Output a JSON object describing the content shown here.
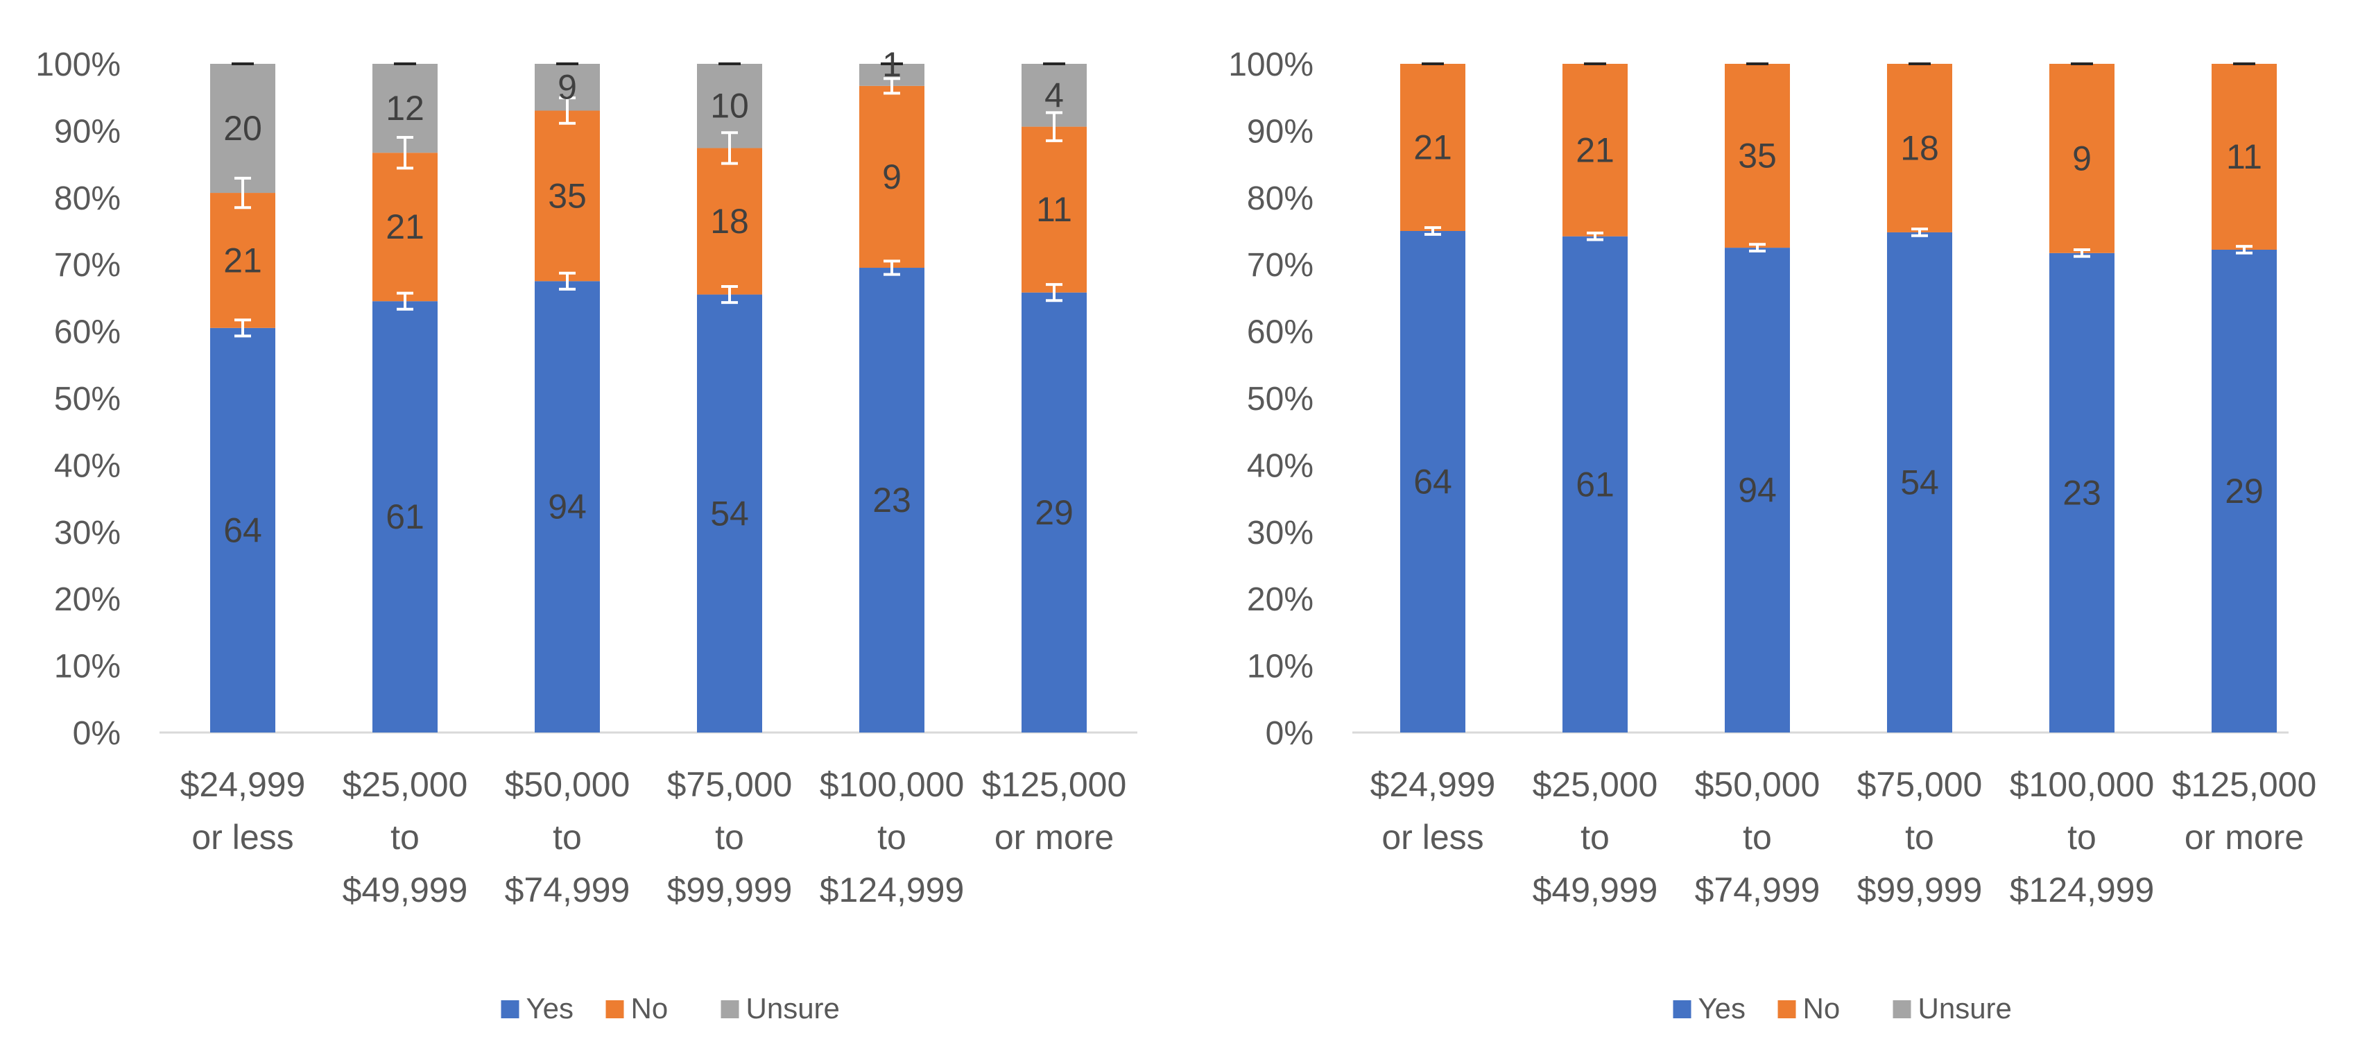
{
  "colors": {
    "yes": "#4472C4",
    "no": "#ED7D31",
    "unsure": "#A5A5A5",
    "axis_text": "#595959",
    "label_text": "#404040",
    "axis_line": "#D9D9D9"
  },
  "chart_data": [
    {
      "type": "bar",
      "stacked": "percent",
      "categories": [
        [
          "$24,999",
          "or less"
        ],
        [
          "$25,000",
          "to",
          "$49,999"
        ],
        [
          "$50,000",
          "to",
          "$74,999"
        ],
        [
          "$75,000",
          "to",
          "$99,999"
        ],
        [
          "$100,000",
          "to",
          "$124,999"
        ],
        [
          "$125,000",
          "or more"
        ]
      ],
      "ylim": [
        0,
        100
      ],
      "yticks": [
        "0%",
        "10%",
        "20%",
        "30%",
        "40%",
        "50%",
        "60%",
        "70%",
        "80%",
        "90%",
        "100%"
      ],
      "legend": {
        "position": "bottom",
        "entries": [
          "Yes",
          "No",
          "Unsure"
        ]
      },
      "series": [
        {
          "name": "Yes",
          "key": "yes",
          "percent": [
            60.5,
            64.5,
            67.5,
            65.5,
            69.5,
            65.8
          ],
          "labels": [
            64,
            61,
            94,
            54,
            23,
            29
          ],
          "error": [
            1.2,
            1.2,
            1.2,
            1.2,
            1.0,
            1.2
          ]
        },
        {
          "name": "No",
          "key": "no",
          "percent": [
            20.2,
            22.2,
            25.5,
            21.9,
            27.2,
            24.8
          ],
          "labels": [
            21,
            21,
            35,
            18,
            9,
            11
          ],
          "error": [
            2.2,
            2.3,
            1.9,
            2.3,
            1.1,
            2.1
          ]
        },
        {
          "name": "Unsure",
          "key": "unsure",
          "percent": [
            19.3,
            13.3,
            7.0,
            12.6,
            3.3,
            9.4
          ],
          "labels": [
            20,
            12,
            9,
            10,
            1,
            4
          ],
          "error": [
            0,
            0,
            0,
            0,
            0,
            0
          ]
        }
      ]
    },
    {
      "type": "bar",
      "stacked": "percent",
      "categories": [
        [
          "$24,999",
          "or less"
        ],
        [
          "$25,000",
          "to",
          "$49,999"
        ],
        [
          "$50,000",
          "to",
          "$74,999"
        ],
        [
          "$75,000",
          "to",
          "$99,999"
        ],
        [
          "$100,000",
          "to",
          "$124,999"
        ],
        [
          "$125,000",
          "or more"
        ]
      ],
      "ylim": [
        0,
        100
      ],
      "yticks": [
        "0%",
        "10%",
        "20%",
        "30%",
        "40%",
        "50%",
        "60%",
        "70%",
        "80%",
        "90%",
        "100%"
      ],
      "legend": {
        "position": "bottom",
        "entries": [
          "Yes",
          "No",
          "Unsure"
        ]
      },
      "series": [
        {
          "name": "Yes",
          "key": "yes",
          "percent": [
            75.0,
            74.2,
            72.5,
            74.8,
            71.7,
            72.2
          ],
          "labels": [
            64,
            61,
            94,
            54,
            23,
            29
          ],
          "error": [
            0.5,
            0.5,
            0.5,
            0.5,
            0.5,
            0.5
          ]
        },
        {
          "name": "No",
          "key": "no",
          "percent": [
            25.0,
            25.8,
            27.5,
            25.2,
            28.3,
            27.8
          ],
          "labels": [
            21,
            21,
            35,
            18,
            9,
            11
          ],
          "error": [
            0,
            0,
            0,
            0,
            0,
            0
          ]
        },
        {
          "name": "Unsure",
          "key": "unsure",
          "percent": [
            0,
            0,
            0,
            0,
            0,
            0
          ],
          "labels": [
            null,
            null,
            null,
            null,
            null,
            null
          ],
          "error": [
            0,
            0,
            0,
            0,
            0,
            0
          ]
        }
      ]
    }
  ]
}
